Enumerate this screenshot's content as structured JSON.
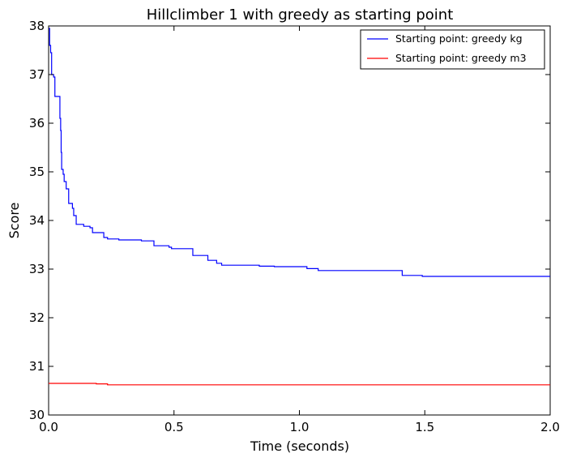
{
  "chart_data": {
    "type": "line",
    "title": "Hillclimber 1 with greedy as starting point",
    "xlabel": "Time (seconds)",
    "ylabel": "Score",
    "xlim": [
      0.0,
      2.0
    ],
    "ylim": [
      30,
      38
    ],
    "x_ticks": [
      "0.0",
      "0.5",
      "1.0",
      "1.5",
      "2.0"
    ],
    "x_tick_values": [
      0.0,
      0.5,
      1.0,
      1.5,
      2.0
    ],
    "y_ticks": [
      "30",
      "31",
      "32",
      "33",
      "34",
      "35",
      "36",
      "37",
      "38"
    ],
    "y_tick_values": [
      30,
      31,
      32,
      33,
      34,
      35,
      36,
      37,
      38
    ],
    "grid": false,
    "legend_position": "top-right",
    "step": true,
    "series": [
      {
        "name": "Starting point: greedy kg",
        "color": "#0000ff",
        "points": [
          [
            0.0,
            37.95
          ],
          [
            0.004,
            37.6
          ],
          [
            0.008,
            37.45
          ],
          [
            0.012,
            37.0
          ],
          [
            0.02,
            36.95
          ],
          [
            0.025,
            36.55
          ],
          [
            0.045,
            36.1
          ],
          [
            0.048,
            35.85
          ],
          [
            0.05,
            35.4
          ],
          [
            0.052,
            35.05
          ],
          [
            0.058,
            34.95
          ],
          [
            0.062,
            34.8
          ],
          [
            0.07,
            34.65
          ],
          [
            0.08,
            34.35
          ],
          [
            0.095,
            34.25
          ],
          [
            0.1,
            34.1
          ],
          [
            0.11,
            33.92
          ],
          [
            0.14,
            33.88
          ],
          [
            0.165,
            33.85
          ],
          [
            0.175,
            33.75
          ],
          [
            0.22,
            33.65
          ],
          [
            0.235,
            33.62
          ],
          [
            0.28,
            33.6
          ],
          [
            0.37,
            33.58
          ],
          [
            0.42,
            33.48
          ],
          [
            0.48,
            33.45
          ],
          [
            0.49,
            33.42
          ],
          [
            0.575,
            33.28
          ],
          [
            0.635,
            33.18
          ],
          [
            0.67,
            33.12
          ],
          [
            0.69,
            33.08
          ],
          [
            0.84,
            33.06
          ],
          [
            0.9,
            33.05
          ],
          [
            1.03,
            33.01
          ],
          [
            1.075,
            32.97
          ],
          [
            1.41,
            32.87
          ],
          [
            1.49,
            32.85
          ],
          [
            2.0,
            32.85
          ]
        ]
      },
      {
        "name": "Starting point: greedy m3",
        "color": "#ff0000",
        "points": [
          [
            0.0,
            30.65
          ],
          [
            0.19,
            30.64
          ],
          [
            0.235,
            30.62
          ],
          [
            2.0,
            30.62
          ]
        ]
      }
    ]
  }
}
